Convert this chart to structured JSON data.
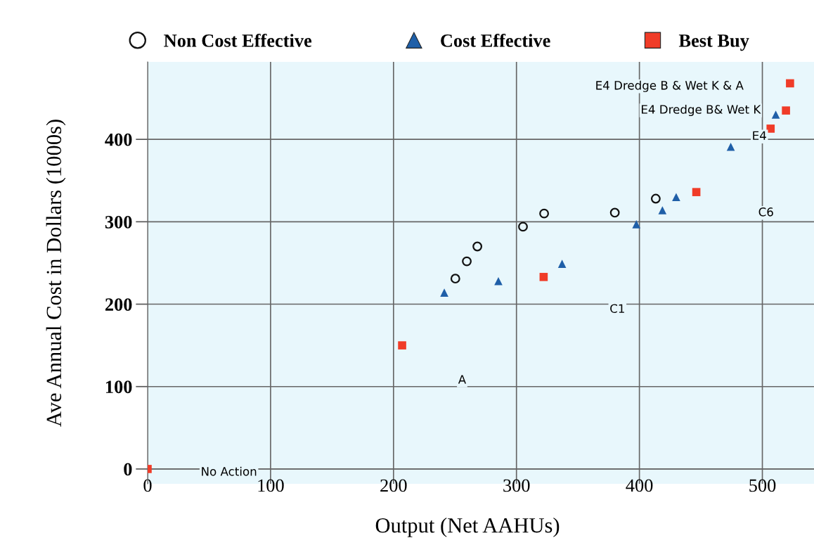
{
  "chart_data": {
    "type": "scatter",
    "xlabel": "Output (Net AAHUs)",
    "ylabel": "Ave Annual Cost in Dollars (1000s)",
    "xlim": [
      0,
      542
    ],
    "ylim": [
      -18,
      494
    ],
    "xticks": [
      0,
      100,
      200,
      300,
      400,
      500
    ],
    "yticks": [
      0,
      100,
      200,
      300,
      400
    ],
    "grid": true,
    "legend": "top",
    "series": [
      {
        "name": "Non Cost Effective",
        "marker": "circle",
        "color": "#111111",
        "x": [
          250.3,
          259.6,
          268.2,
          305.3,
          322.5,
          380,
          413.3
        ],
        "values": [
          231,
          252,
          270,
          294,
          310,
          311,
          328
        ]
      },
      {
        "name": "Cost Effective",
        "marker": "triangle",
        "color": "#1f5fa8",
        "x": [
          241.3,
          285.3,
          337.1,
          397.5,
          418.7,
          429.9,
          474.3,
          510.9
        ],
        "values": [
          214,
          228,
          249,
          297,
          314,
          330,
          391,
          430
        ]
      },
      {
        "name": "Best Buy",
        "marker": "square",
        "color": "#f03c28",
        "x": [
          0,
          207,
          322.1,
          446.3,
          506.7,
          519.2,
          522.5
        ],
        "values": [
          0,
          150,
          233,
          336,
          413,
          435,
          468
        ]
      }
    ],
    "annotations": [
      "E4 Dredge B & Wet K & A",
      "E4 Dredge B& Wet K",
      "E4",
      "C6",
      "C1",
      "A",
      "No Action"
    ]
  }
}
